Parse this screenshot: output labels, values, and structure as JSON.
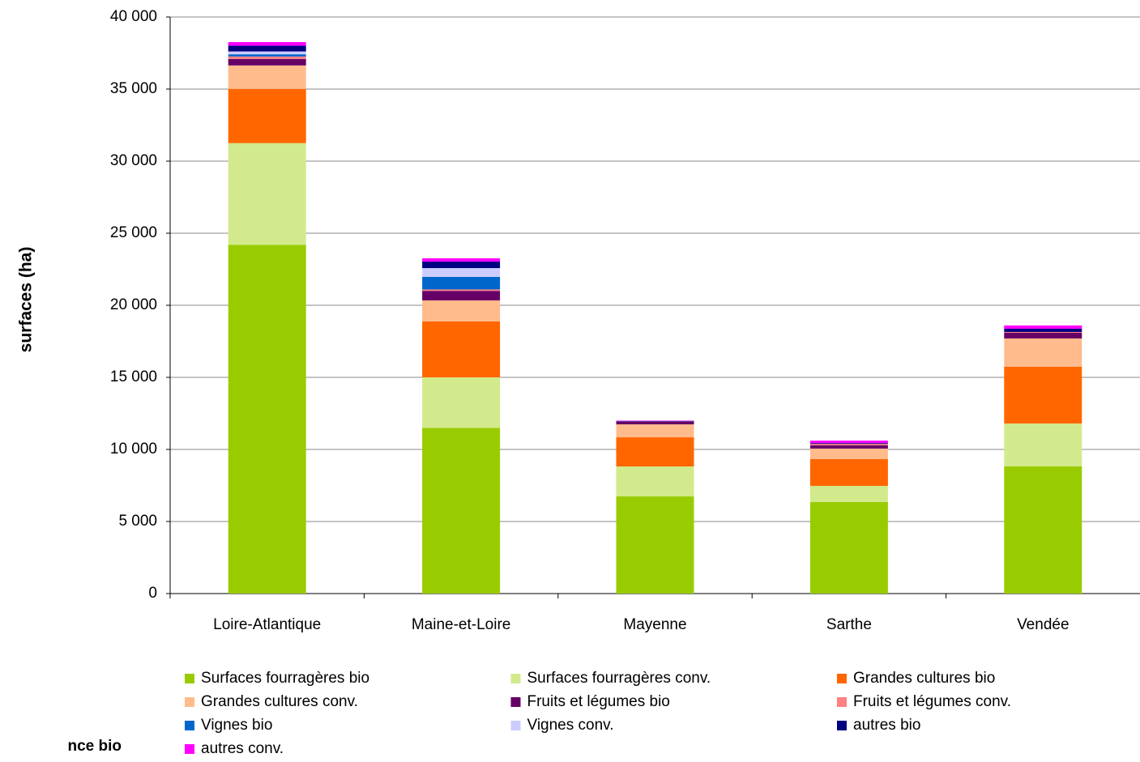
{
  "chart_data": {
    "type": "stacked_bar",
    "y_label": "surfaces  (ha)",
    "footer_note": "nce bio",
    "categories": [
      "Loire-Atlantique",
      "Maine-et-Loire",
      "Mayenne",
      "Sarthe",
      "Vendée"
    ],
    "series": [
      {
        "name": "Surfaces fourragères bio",
        "color": "#99cc00",
        "values": [
          24200,
          11500,
          6740,
          6350,
          8820
        ]
      },
      {
        "name": "Surfaces fourragères conv.",
        "color": "#d2ea8c",
        "values": [
          7050,
          3500,
          2080,
          1120,
          2980
        ]
      },
      {
        "name": "Grandes cultures bio",
        "color": "#ff6600",
        "values": [
          3760,
          3880,
          2020,
          1860,
          3930
        ]
      },
      {
        "name": "Grandes cultures conv.",
        "color": "#ffbb8c",
        "values": [
          1630,
          1460,
          900,
          730,
          1970
        ]
      },
      {
        "name": "Fruits et légumes bio",
        "color": "#660066",
        "values": [
          450,
          660,
          170,
          220,
          390
        ]
      },
      {
        "name": "Fruits et légumes conv.",
        "color": "#ff8080",
        "values": [
          170,
          100,
          20,
          100,
          60
        ]
      },
      {
        "name": "Vignes bio",
        "color": "#0066cc",
        "values": [
          150,
          870,
          0,
          0,
          0
        ]
      },
      {
        "name": "Vignes conv.",
        "color": "#ccccff",
        "values": [
          200,
          610,
          0,
          0,
          0
        ]
      },
      {
        "name": "autres bio",
        "color": "#000080",
        "values": [
          400,
          450,
          40,
          60,
          220
        ]
      },
      {
        "name": "autres conv.",
        "color": "#ff00ff",
        "values": [
          250,
          230,
          30,
          170,
          230
        ]
      }
    ],
    "ylim": [
      0,
      40000
    ],
    "yticks": [
      0,
      {
        "value": 5000,
        "label": "5 000"
      },
      {
        "value": 10000,
        "label": "10 000"
      },
      {
        "value": 15000,
        "label": "15 000"
      },
      {
        "value": 20000,
        "label": "20 000"
      },
      {
        "value": 25000,
        "label": "25 000"
      },
      {
        "value": 30000,
        "label": "30 000"
      },
      {
        "value": 35000,
        "label": "35 000"
      },
      {
        "value": 40000,
        "label": "40 000"
      }
    ],
    "grid": true
  }
}
